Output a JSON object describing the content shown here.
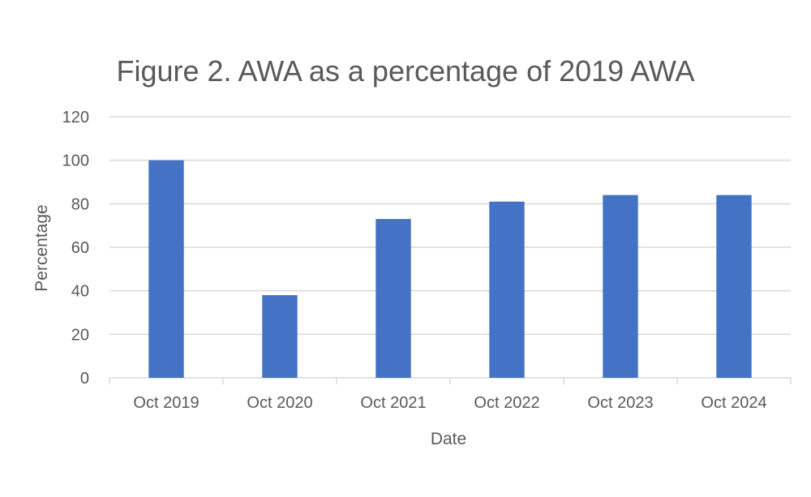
{
  "chart_data": {
    "type": "bar",
    "title": "Figure 2. AWA as a percentage of 2019 AWA",
    "xlabel": "Date",
    "ylabel": "Percentage",
    "categories": [
      "Oct 2019",
      "Oct 2020",
      "Oct 2021",
      "Oct 2022",
      "Oct 2023",
      "Oct 2024"
    ],
    "values": [
      100,
      38,
      73,
      81,
      84,
      84
    ],
    "ylim": [
      0,
      120
    ],
    "yticks": [
      0,
      20,
      40,
      60,
      80,
      100,
      120
    ],
    "grid": true,
    "legend": "none",
    "bar_color": "#4472c4",
    "grid_color": "#d9d9d9",
    "text_color": "#595959"
  }
}
